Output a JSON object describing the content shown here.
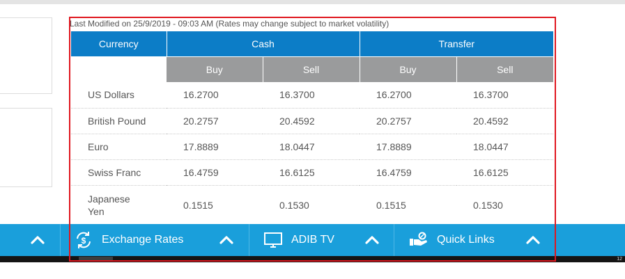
{
  "rates": {
    "last_modified": "Last Modified on 25/9/2019 - 09:03 AM (Rates may change subject to market volatility)",
    "headers": {
      "currency": "Currency",
      "cash": "Cash",
      "transfer": "Transfer",
      "buy": "Buy",
      "sell": "Sell"
    },
    "rows": [
      {
        "currency": "US Dollars",
        "cash_buy": "16.2700",
        "cash_sell": "16.3700",
        "transfer_buy": "16.2700",
        "transfer_sell": "16.3700"
      },
      {
        "currency": "British Pound",
        "cash_buy": "20.2757",
        "cash_sell": "20.4592",
        "transfer_buy": "20.2757",
        "transfer_sell": "20.4592"
      },
      {
        "currency": "Euro",
        "cash_buy": "17.8889",
        "cash_sell": "18.0447",
        "transfer_buy": "17.8889",
        "transfer_sell": "18.0447"
      },
      {
        "currency": "Swiss Franc",
        "cash_buy": "16.4759",
        "cash_sell": "16.6125",
        "transfer_buy": "16.4759",
        "transfer_sell": "16.6125"
      },
      {
        "currency_line1": "Japanese",
        "currency_line2": "Yen",
        "cash_buy": "0.1515",
        "cash_sell": "0.1530",
        "transfer_buy": "0.1515",
        "transfer_sell": "0.1530"
      }
    ]
  },
  "footer": {
    "exchange_rates": "Exchange Rates",
    "adib_tv": "ADIB TV",
    "quick_links": "Quick Links"
  },
  "corner_number": "12",
  "colors": {
    "header_blue": "#0c7dc7",
    "header_gray": "#9a9b9c",
    "footer_blue": "#1a9fdb",
    "highlight_red": "#e0161e"
  },
  "icons": [
    "chevron-up-icon",
    "exchange-icon",
    "tv-icon",
    "hand-icon"
  ]
}
